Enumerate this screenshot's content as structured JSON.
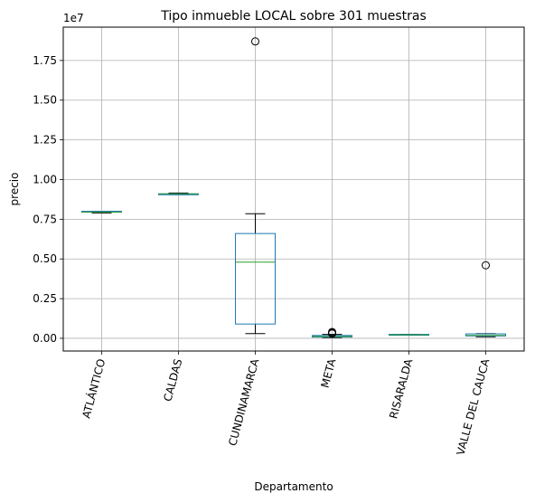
{
  "chart_data": {
    "type": "box",
    "title": "Tipo inmueble LOCAL sobre 301 muestras",
    "xlabel": "Departamento",
    "ylabel": "precio",
    "y_offset_text": "1e7",
    "y_scale_factor": 10000000,
    "ylim": [
      -0.08,
      1.96
    ],
    "yticks": [
      0.0,
      0.25,
      0.5,
      0.75,
      1.0,
      1.25,
      1.5,
      1.75
    ],
    "ytick_labels": [
      "0.00",
      "0.25",
      "0.50",
      "0.75",
      "1.00",
      "1.25",
      "1.50",
      "1.75"
    ],
    "grid": true,
    "colors": {
      "box": "#1f77b4",
      "median": "#2ca02c",
      "whisker": "#000000",
      "grid": "#b0b0b0"
    },
    "categories": [
      "ATLÁNTICO",
      "CALDAS",
      "CUNDINAMARCA",
      "META",
      "RISARALDA",
      "VALLE DEL CAUCA"
    ],
    "boxes": [
      {
        "category": "ATLÁNTICO",
        "whisker_low": 0.79,
        "q1": 0.795,
        "median": 0.795,
        "q3": 0.8,
        "whisker_high": 0.8,
        "outliers": []
      },
      {
        "category": "CALDAS",
        "whisker_low": 0.905,
        "q1": 0.905,
        "median": 0.91,
        "q3": 0.91,
        "whisker_high": 0.915,
        "outliers": []
      },
      {
        "category": "CUNDINAMARCA",
        "whisker_low": 0.03,
        "q1": 0.09,
        "median": 0.48,
        "q3": 0.66,
        "whisker_high": 0.785,
        "outliers": [
          1.87
        ]
      },
      {
        "category": "META",
        "whisker_low": 0.005,
        "q1": 0.008,
        "median": 0.012,
        "q3": 0.018,
        "whisker_high": 0.025,
        "outliers": [
          0.03,
          0.035,
          0.04
        ]
      },
      {
        "category": "RISARALDA",
        "whisker_low": 0.02,
        "q1": 0.02,
        "median": 0.022,
        "q3": 0.025,
        "whisker_high": 0.025,
        "outliers": []
      },
      {
        "category": "VALLE DEL CAUCA",
        "whisker_low": 0.01,
        "q1": 0.015,
        "median": 0.018,
        "q3": 0.028,
        "whisker_high": 0.03,
        "outliers": [
          0.46
        ]
      }
    ]
  }
}
